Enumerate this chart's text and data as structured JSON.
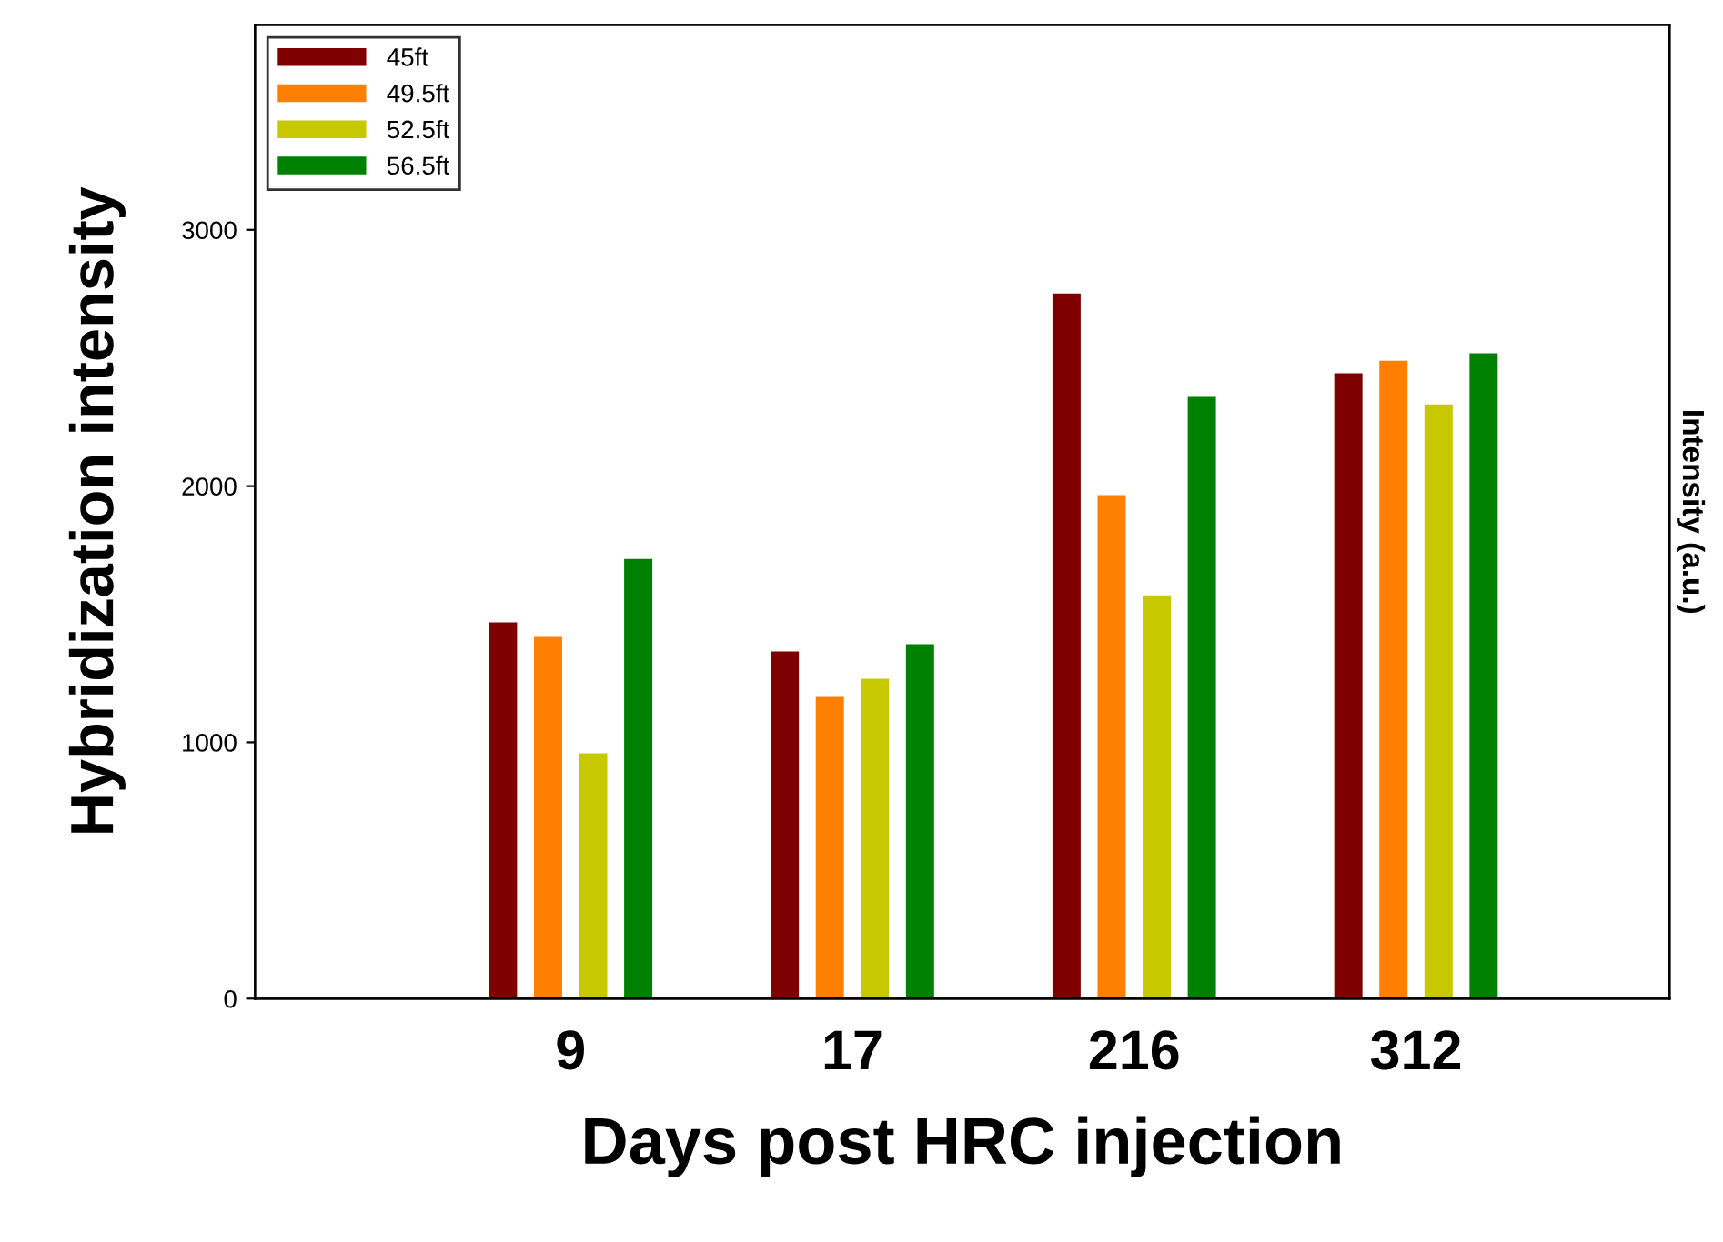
{
  "chart_data": {
    "type": "bar",
    "xlabel": "Days post HRC injection",
    "ylabel": "Hybridization intensity",
    "y2label": "Intensity (a.u.)",
    "categories": [
      "9",
      "17",
      "216",
      "312"
    ],
    "series": [
      {
        "name": "45ft",
        "color": "#7f0000",
        "values": [
          1468,
          1355,
          2752,
          2440
        ]
      },
      {
        "name": "49.5ft",
        "color": "#ff8000",
        "values": [
          1411,
          1177,
          1965,
          2489
        ]
      },
      {
        "name": "52.5ft",
        "color": "#c8c800",
        "values": [
          957,
          1248,
          1574,
          2319
        ]
      },
      {
        "name": "56.5ft",
        "color": "#008000",
        "values": [
          1716,
          1383,
          2348,
          2518
        ]
      }
    ],
    "ylim": [
      0,
      3800
    ],
    "yticks": [
      0,
      1000,
      2000,
      3000
    ],
    "grid": false,
    "legend": "top left"
  }
}
